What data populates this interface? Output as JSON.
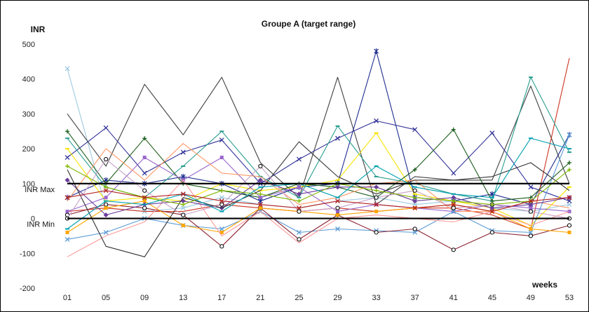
{
  "chart_data": {
    "type": "line",
    "title": "Groupe A (target range)",
    "ylabel": "INR",
    "xlabel": "weeks",
    "categories": [
      "01",
      "05",
      "09",
      "13",
      "17",
      "21",
      "25",
      "29",
      "33",
      "37",
      "41",
      "45",
      "49",
      "53"
    ],
    "ylim": [
      -200,
      500
    ],
    "yticks": [
      -200,
      -100,
      0,
      100,
      200,
      300,
      400,
      500
    ],
    "grid": false,
    "legend": "none",
    "reference_lines": [
      {
        "label": "INR Max",
        "value": 100
      },
      {
        "label": "INR Min",
        "value": 0
      }
    ],
    "series": [
      {
        "color": "#9ecae1",
        "marker": "x",
        "values": [
          430,
          30,
          20,
          30,
          60,
          40,
          30,
          50,
          60,
          40,
          50,
          30,
          20,
          40
        ]
      },
      {
        "color": "#404040",
        "marker": "none",
        "values": [
          300,
          150,
          385,
          240,
          405,
          160,
          60,
          405,
          40,
          120,
          110,
          110,
          380,
          100
        ]
      },
      {
        "color": "#1f2f8f",
        "marker": "*",
        "values": [
          60,
          110,
          100,
          120,
          100,
          50,
          90,
          100,
          480,
          60,
          50,
          70,
          40,
          240
        ]
      },
      {
        "color": "#333399",
        "marker": "x",
        "values": [
          175,
          260,
          130,
          190,
          225,
          100,
          170,
          230,
          280,
          255,
          130,
          245,
          90,
          50
        ]
      },
      {
        "color": "#cc3322",
        "marker": "none",
        "values": [
          20,
          30,
          20,
          20,
          40,
          30,
          20,
          30,
          20,
          30,
          30,
          10,
          -30,
          460
        ]
      },
      {
        "color": "#2a9d8f",
        "marker": "-",
        "values": [
          230,
          90,
          60,
          150,
          250,
          120,
          60,
          265,
          120,
          100,
          70,
          50,
          405,
          190
        ]
      },
      {
        "color": "#f5e400",
        "marker": "-",
        "values": [
          200,
          50,
          60,
          50,
          100,
          80,
          90,
          110,
          245,
          70,
          50,
          30,
          -20,
          90
        ]
      },
      {
        "color": "#1a5c1a",
        "marker": "+",
        "values": [
          250,
          100,
          230,
          100,
          80,
          60,
          100,
          90,
          60,
          140,
          255,
          50,
          60,
          160
        ]
      },
      {
        "color": "#9966cc",
        "marker": "s",
        "values": [
          20,
          60,
          175,
          110,
          175,
          60,
          90,
          20,
          40,
          30,
          20,
          40,
          30,
          20
        ]
      },
      {
        "color": "#ff9966",
        "marker": "none",
        "values": [
          50,
          200,
          110,
          215,
          130,
          120,
          40,
          60,
          100,
          110,
          20,
          20,
          50,
          30
        ]
      },
      {
        "color": "#5b9bd5",
        "marker": "x",
        "values": [
          -60,
          -40,
          0,
          -20,
          -30,
          20,
          -40,
          -30,
          -35,
          -40,
          20,
          -35,
          -40,
          240
        ]
      },
      {
        "color": "#8b2332",
        "marker": "o",
        "values": [
          10,
          40,
          30,
          10,
          -80,
          30,
          -60,
          10,
          -40,
          -30,
          -90,
          -40,
          -50,
          -20
        ]
      },
      {
        "color": "#ffa500",
        "marker": "s",
        "values": [
          -40,
          30,
          50,
          -20,
          -40,
          30,
          20,
          10,
          20,
          30,
          40,
          20,
          -30,
          -40
        ]
      },
      {
        "color": "#ff9999",
        "marker": "none",
        "values": [
          -110,
          -50,
          -10,
          110,
          -50,
          20,
          -70,
          0,
          10,
          0,
          -10,
          20,
          -20,
          20
        ]
      },
      {
        "color": "#6a3d9a",
        "marker": "d",
        "values": [
          110,
          10,
          40,
          50,
          30,
          110,
          70,
          90,
          90,
          50,
          60,
          30,
          40,
          60
        ]
      },
      {
        "color": "#333333",
        "marker": "none",
        "values": [
          140,
          -80,
          -110,
          60,
          30,
          80,
          220,
          120,
          70,
          110,
          110,
          120,
          160,
          80
        ]
      },
      {
        "color": "#c8a2c8",
        "marker": "o",
        "values": [
          0,
          170,
          80,
          10,
          40,
          150,
          20,
          30,
          60,
          80,
          30,
          40,
          20,
          0
        ]
      },
      {
        "color": "#7fb800",
        "marker": "+",
        "values": [
          150,
          90,
          60,
          40,
          80,
          70,
          50,
          100,
          80,
          60,
          50,
          40,
          50,
          140
        ]
      },
      {
        "color": "#00a0b0",
        "marker": "-",
        "values": [
          -30,
          50,
          40,
          70,
          20,
          90,
          100,
          60,
          150,
          90,
          70,
          60,
          230,
          200
        ]
      },
      {
        "color": "#b22222",
        "marker": "x",
        "values": [
          60,
          80,
          60,
          70,
          50,
          40,
          30,
          50,
          40,
          30,
          40,
          20,
          50,
          60
        ]
      }
    ]
  }
}
